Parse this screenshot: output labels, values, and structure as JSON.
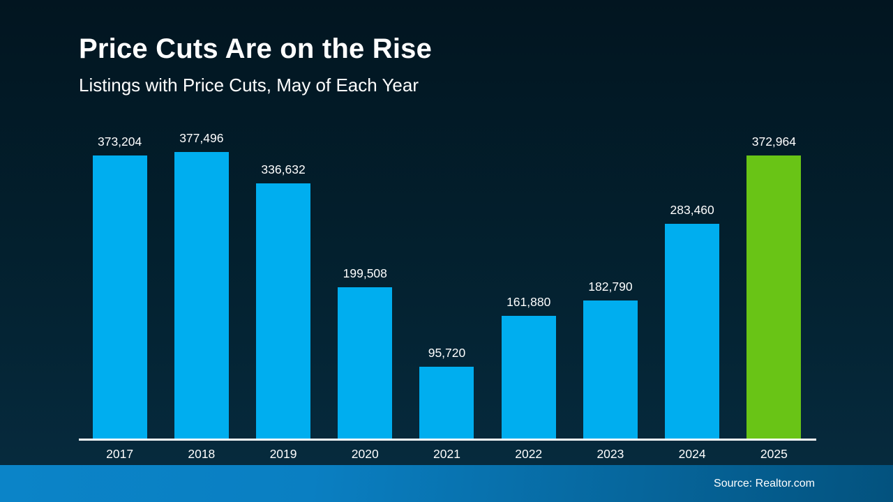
{
  "header": {
    "title": "Price Cuts Are on the Rise",
    "subtitle": "Listings with Price Cuts, May of Each Year"
  },
  "chart_data": {
    "type": "bar",
    "title": "Price Cuts Are on the Rise",
    "subtitle": "Listings with Price Cuts, May of Each Year",
    "categories": [
      "2017",
      "2018",
      "2019",
      "2020",
      "2021",
      "2022",
      "2023",
      "2024",
      "2025"
    ],
    "values": [
      373204,
      377496,
      336632,
      199508,
      95720,
      161880,
      182790,
      283460,
      372964
    ],
    "value_labels": [
      "373,204",
      "377,496",
      "336,632",
      "199,508",
      "95,720",
      "161,880",
      "182,790",
      "283,460",
      "372,964"
    ],
    "bar_colors": [
      "#00AEEF",
      "#00AEEF",
      "#00AEEF",
      "#00AEEF",
      "#00AEEF",
      "#00AEEF",
      "#00AEEF",
      "#00AEEF",
      "#69C416"
    ],
    "highlight_category": "2025",
    "xlabel": "",
    "ylabel": "",
    "ylim": [
      0,
      377496
    ],
    "grid": false,
    "legend": false
  },
  "footer": {
    "source": "Source: Realtor.com"
  },
  "colors": {
    "bar_blue": "#00AEEF",
    "bar_green": "#69C416",
    "background_top": "#021520",
    "background_bottom": "#062a3d",
    "footer_gradient_left": "#0b84c8",
    "footer_gradient_right": "#03527e",
    "axis_line": "#ffffff",
    "text": "#ffffff"
  }
}
